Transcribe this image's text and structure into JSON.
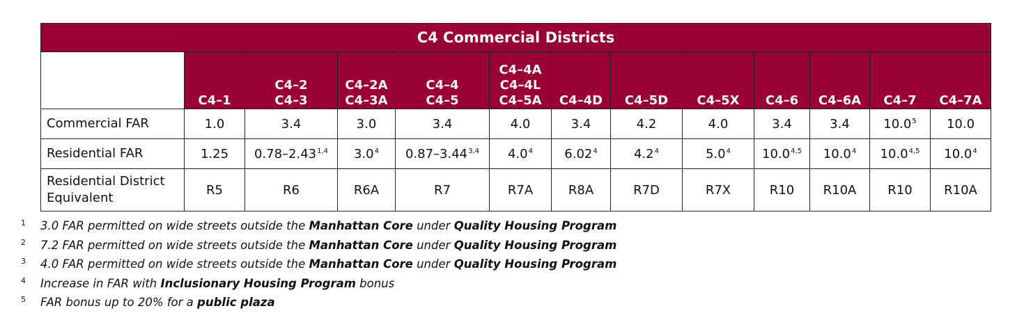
{
  "table": {
    "title": "C4 Commercial Districts",
    "columns": [
      {
        "lines": [
          "C4–1"
        ]
      },
      {
        "lines": [
          "C4–2",
          "C4–3"
        ]
      },
      {
        "lines": [
          "C4–2A",
          "C4–3A"
        ]
      },
      {
        "lines": [
          "C4–4",
          "C4–5"
        ]
      },
      {
        "lines": [
          "C4–4A",
          "C4–4L",
          "C4–5A"
        ]
      },
      {
        "lines": [
          "C4–4D"
        ]
      },
      {
        "lines": [
          "C4–5D"
        ]
      },
      {
        "lines": [
          "C4–5X"
        ]
      },
      {
        "lines": [
          "C4–6"
        ]
      },
      {
        "lines": [
          "C4–6A"
        ]
      },
      {
        "lines": [
          "C4–7"
        ]
      },
      {
        "lines": [
          "C4–7A"
        ]
      }
    ],
    "rows": [
      {
        "label": "Commercial FAR",
        "cells": [
          {
            "v": "1.0",
            "sup": ""
          },
          {
            "v": "3.4",
            "sup": ""
          },
          {
            "v": "3.0",
            "sup": ""
          },
          {
            "v": "3.4",
            "sup": ""
          },
          {
            "v": "4.0",
            "sup": ""
          },
          {
            "v": "3.4",
            "sup": ""
          },
          {
            "v": "4.2",
            "sup": ""
          },
          {
            "v": "4.0",
            "sup": ""
          },
          {
            "v": "3.4",
            "sup": ""
          },
          {
            "v": "3.4",
            "sup": ""
          },
          {
            "v": "10.0",
            "sup": "5"
          },
          {
            "v": "10.0",
            "sup": ""
          }
        ]
      },
      {
        "label": "Residential FAR",
        "cells": [
          {
            "v": "1.25",
            "sup": ""
          },
          {
            "v": "0.78–2.43",
            "sup": "1,4"
          },
          {
            "v": "3.0",
            "sup": "4"
          },
          {
            "v": "0.87–3.44",
            "sup": "3,4"
          },
          {
            "v": "4.0",
            "sup": "4"
          },
          {
            "v": "6.02",
            "sup": "4"
          },
          {
            "v": "4.2",
            "sup": "4"
          },
          {
            "v": "5.0",
            "sup": "4"
          },
          {
            "v": "10.0",
            "sup": "4,5"
          },
          {
            "v": "10.0",
            "sup": "4"
          },
          {
            "v": "10.0",
            "sup": "4,5"
          },
          {
            "v": "10.0",
            "sup": "4"
          }
        ]
      },
      {
        "label": [
          "Residential District",
          "Equivalent"
        ],
        "cells": [
          {
            "v": "R5",
            "sup": ""
          },
          {
            "v": "R6",
            "sup": ""
          },
          {
            "v": "R6A",
            "sup": ""
          },
          {
            "v": "R7",
            "sup": ""
          },
          {
            "v": "R7A",
            "sup": ""
          },
          {
            "v": "R8A",
            "sup": ""
          },
          {
            "v": "R7D",
            "sup": ""
          },
          {
            "v": "R7X",
            "sup": ""
          },
          {
            "v": "R10",
            "sup": ""
          },
          {
            "v": "R10A",
            "sup": ""
          },
          {
            "v": "R10",
            "sup": ""
          },
          {
            "v": "R10A",
            "sup": ""
          }
        ]
      }
    ]
  },
  "footnotes": [
    {
      "num": "1",
      "pre": "3.0 FAR permitted on wide streets outside the ",
      "b1": "Manhattan Core",
      "mid": " under ",
      "b2": "Quality Housing Program"
    },
    {
      "num": "2",
      "pre": "7.2 FAR permitted on wide streets outside the ",
      "b1": "Manhattan Core",
      "mid": " under ",
      "b2": "Quality Housing Program"
    },
    {
      "num": "3",
      "pre": "4.0 FAR permitted on wide streets outside the ",
      "b1": "Manhattan Core",
      "mid": " under ",
      "b2": "Quality Housing Program"
    },
    {
      "num": "4",
      "pre": "Increase in FAR with ",
      "b1": "Inclusionary Housing Program",
      "mid": " bonus",
      "b2": ""
    },
    {
      "num": "5",
      "pre": "FAR bonus up to 20% for a ",
      "b1": "public plaza",
      "mid": "",
      "b2": ""
    }
  ]
}
